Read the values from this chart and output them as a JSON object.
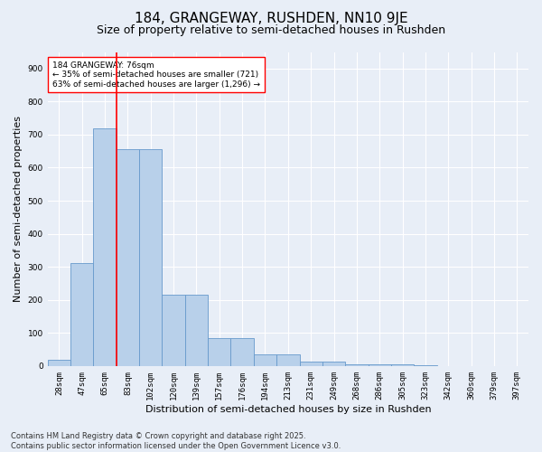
{
  "title1": "184, GRANGEWAY, RUSHDEN, NN10 9JE",
  "title2": "Size of property relative to semi-detached houses in Rushden",
  "xlabel": "Distribution of semi-detached houses by size in Rushden",
  "ylabel": "Number of semi-detached properties",
  "categories": [
    "28sqm",
    "47sqm",
    "65sqm",
    "83sqm",
    "102sqm",
    "120sqm",
    "139sqm",
    "157sqm",
    "176sqm",
    "194sqm",
    "213sqm",
    "231sqm",
    "249sqm",
    "268sqm",
    "286sqm",
    "305sqm",
    "323sqm",
    "342sqm",
    "360sqm",
    "379sqm",
    "397sqm"
  ],
  "values": [
    20,
    310,
    720,
    655,
    655,
    215,
    215,
    85,
    85,
    35,
    35,
    12,
    12,
    5,
    5,
    5,
    2,
    0,
    0,
    0,
    0
  ],
  "bar_color": "#b8d0ea",
  "bar_edge_color": "#6699cc",
  "vline_x": 2.5,
  "vline_color": "red",
  "annotation_text": "184 GRANGEWAY: 76sqm\n← 35% of semi-detached houses are smaller (721)\n63% of semi-detached houses are larger (1,296) →",
  "annotation_box_color": "white",
  "annotation_box_edge_color": "red",
  "ylim": [
    0,
    950
  ],
  "yticks": [
    0,
    100,
    200,
    300,
    400,
    500,
    600,
    700,
    800,
    900
  ],
  "footnote": "Contains HM Land Registry data © Crown copyright and database right 2025.\nContains public sector information licensed under the Open Government Licence v3.0.",
  "bg_color": "#e8eef7",
  "plot_bg_color": "#e8eef7",
  "grid_color": "white",
  "title1_fontsize": 11,
  "title2_fontsize": 9,
  "xlabel_fontsize": 8,
  "ylabel_fontsize": 8,
  "tick_fontsize": 6.5,
  "footnote_fontsize": 6,
  "annot_fontsize": 6.5
}
